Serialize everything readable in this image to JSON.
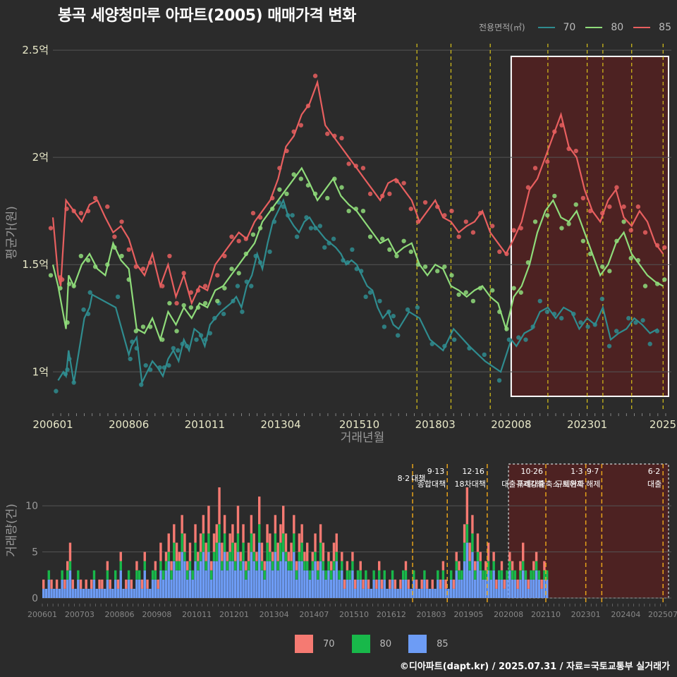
{
  "title": "봉곡 세양청마루 아파트(2005) 매매가격 변화",
  "credit": "©디아파트(dapt.kr) / 2025.07.31 / 자료=국토교통부 실거래가",
  "legend_top": {
    "title": "전용면적(㎡)",
    "items": [
      "70",
      "80",
      "85"
    ]
  },
  "legend_bottom": {
    "items": [
      "70",
      "80",
      "85"
    ]
  },
  "colors": {
    "s70": "#2f8c8f",
    "s80": "#8fdc7a",
    "s85": "#e85f5f",
    "b70": "#f57a72",
    "b80": "#18b84a",
    "b85": "#6d9cf5",
    "event": "#d8c21a",
    "event2": "#e6a21a",
    "highlight": "#5a2020"
  },
  "chart_data": [
    {
      "type": "line",
      "title": "봉곡 세양청마루 아파트(2005) 매매가격 변화",
      "xlabel": "거래년월",
      "ylabel": "평균가(원)",
      "ylim": [
        "0.82억",
        "2.53억"
      ],
      "y_ticks": [
        "1억",
        "1.5억",
        "2억",
        "2.5억"
      ],
      "x_ticks": [
        "200601",
        "200806",
        "201011",
        "201304",
        "201510",
        "201803",
        "202008",
        "202301",
        "2025"
      ],
      "grid": true,
      "legend_position": "top-right",
      "series": [
        {
          "name": "70",
          "x": [
            "200603",
            "200605",
            "200606",
            "200607",
            "200609",
            "200701",
            "200703",
            "200704",
            "200801",
            "200806",
            "200807",
            "200809",
            "200811",
            "200901",
            "200903",
            "200905",
            "200907",
            "200909",
            "200911",
            "201001",
            "201003",
            "201005",
            "201007",
            "201009",
            "201011",
            "201101",
            "201103",
            "201105",
            "201107",
            "201109",
            "201111",
            "201201",
            "201203",
            "201205",
            "201207",
            "201209",
            "201211",
            "201301",
            "201303",
            "201305",
            "201307",
            "201309",
            "201311",
            "201401",
            "201403",
            "201405",
            "201407",
            "201409",
            "201411",
            "201501",
            "201503",
            "201505",
            "201507",
            "201509",
            "201511",
            "201601",
            "201603",
            "201605",
            "201607",
            "201609",
            "201611",
            "201701",
            "201705",
            "201709",
            "201801",
            "201806",
            "201810",
            "201904",
            "201910",
            "202004",
            "202008",
            "202010",
            "202101",
            "202104",
            "202107",
            "202110",
            "202201",
            "202204",
            "202207",
            "202210",
            "202301",
            "202304",
            "202307",
            "202310",
            "202401",
            "202404",
            "202407",
            "202410",
            "202501",
            "202504"
          ],
          "values": [
            0.96,
            1.0,
            0.98,
            1.1,
            0.95,
            1.25,
            1.3,
            1.36,
            1.3,
            1.08,
            1.12,
            1.16,
            0.95,
            1.0,
            1.05,
            1.02,
            0.98,
            1.06,
            1.1,
            1.05,
            1.15,
            1.1,
            1.2,
            1.18,
            1.12,
            1.22,
            1.25,
            1.28,
            1.3,
            1.32,
            1.35,
            1.3,
            1.4,
            1.45,
            1.55,
            1.48,
            1.6,
            1.7,
            1.75,
            1.8,
            1.72,
            1.68,
            1.65,
            1.7,
            1.72,
            1.68,
            1.65,
            1.62,
            1.6,
            1.58,
            1.55,
            1.5,
            1.52,
            1.5,
            1.45,
            1.4,
            1.38,
            1.3,
            1.25,
            1.28,
            1.22,
            1.2,
            1.28,
            1.25,
            1.15,
            1.1,
            1.2,
            1.12,
            1.05,
            1.0,
            1.15,
            1.12,
            1.18,
            1.2,
            1.28,
            1.3,
            1.25,
            1.3,
            1.28,
            1.2,
            1.25,
            1.22,
            1.3,
            1.15,
            1.18,
            1.2,
            1.25,
            1.22,
            1.18,
            1.2
          ]
        },
        {
          "name": "80",
          "x": [
            "200601",
            "200603",
            "200606",
            "200607",
            "200609",
            "200612",
            "200703",
            "200706",
            "200709",
            "200712",
            "200803",
            "200806",
            "200809",
            "200812",
            "200903",
            "200906",
            "200909",
            "200912",
            "201003",
            "201006",
            "201009",
            "201012",
            "201103",
            "201106",
            "201109",
            "201112",
            "201203",
            "201206",
            "201209",
            "201212",
            "201303",
            "201306",
            "201309",
            "201312",
            "201403",
            "201406",
            "201409",
            "201412",
            "201503",
            "201506",
            "201509",
            "201512",
            "201603",
            "201606",
            "201609",
            "201612",
            "201703",
            "201706",
            "201709",
            "201712",
            "201803",
            "201806",
            "201809",
            "201812",
            "201903",
            "201906",
            "201909",
            "201912",
            "202003",
            "202006",
            "202009",
            "202012",
            "202103",
            "202106",
            "202109",
            "202112",
            "202203",
            "202206",
            "202209",
            "202212",
            "202303",
            "202306",
            "202309",
            "202312",
            "202403",
            "202406",
            "202409",
            "202412",
            "202503",
            "202506"
          ],
          "values": [
            1.5,
            1.4,
            1.2,
            1.45,
            1.4,
            1.5,
            1.55,
            1.48,
            1.45,
            1.6,
            1.52,
            1.48,
            1.2,
            1.18,
            1.25,
            1.15,
            1.28,
            1.22,
            1.3,
            1.25,
            1.32,
            1.3,
            1.38,
            1.4,
            1.45,
            1.5,
            1.55,
            1.6,
            1.7,
            1.75,
            1.8,
            1.85,
            1.9,
            1.95,
            1.88,
            1.8,
            1.85,
            1.9,
            1.82,
            1.78,
            1.75,
            1.7,
            1.65,
            1.6,
            1.62,
            1.55,
            1.58,
            1.6,
            1.5,
            1.45,
            1.5,
            1.48,
            1.4,
            1.38,
            1.35,
            1.38,
            1.4,
            1.35,
            1.32,
            1.2,
            1.35,
            1.4,
            1.5,
            1.65,
            1.75,
            1.8,
            1.72,
            1.7,
            1.75,
            1.65,
            1.55,
            1.45,
            1.5,
            1.6,
            1.65,
            1.55,
            1.5,
            1.45,
            1.42,
            1.4
          ]
        },
        {
          "name": "85",
          "x": [
            "200601",
            "200603",
            "200604",
            "200606",
            "200609",
            "200612",
            "200703",
            "200706",
            "200709",
            "200712",
            "200803",
            "200806",
            "200809",
            "200812",
            "200903",
            "200906",
            "200909",
            "200912",
            "201003",
            "201006",
            "201009",
            "201012",
            "201103",
            "201106",
            "201109",
            "201112",
            "201203",
            "201206",
            "201209",
            "201212",
            "201303",
            "201306",
            "201309",
            "201312",
            "201403",
            "201406",
            "201409",
            "201412",
            "201503",
            "201506",
            "201509",
            "201512",
            "201603",
            "201606",
            "201609",
            "201612",
            "201703",
            "201706",
            "201709",
            "201712",
            "201803",
            "201806",
            "201809",
            "201812",
            "201903",
            "201906",
            "201909",
            "201912",
            "202003",
            "202006",
            "202009",
            "202012",
            "202103",
            "202106",
            "202109",
            "202112",
            "202203",
            "202206",
            "202209",
            "202212",
            "202303",
            "202306",
            "202309",
            "202312",
            "202403",
            "202406",
            "202409",
            "202412",
            "202503",
            "202506"
          ],
          "values": [
            1.72,
            1.45,
            1.4,
            1.8,
            1.75,
            1.7,
            1.78,
            1.8,
            1.72,
            1.65,
            1.68,
            1.62,
            1.5,
            1.45,
            1.55,
            1.4,
            1.5,
            1.35,
            1.45,
            1.32,
            1.4,
            1.38,
            1.5,
            1.55,
            1.6,
            1.65,
            1.62,
            1.7,
            1.75,
            1.8,
            1.9,
            2.05,
            2.1,
            2.2,
            2.25,
            2.35,
            2.15,
            2.1,
            2.05,
            2.0,
            1.95,
            1.9,
            1.85,
            1.8,
            1.88,
            1.9,
            1.85,
            1.8,
            1.7,
            1.75,
            1.8,
            1.72,
            1.7,
            1.65,
            1.68,
            1.7,
            1.75,
            1.65,
            1.6,
            1.55,
            1.62,
            1.7,
            1.85,
            1.9,
            2.0,
            2.1,
            2.2,
            2.05,
            2.0,
            1.85,
            1.75,
            1.7,
            1.8,
            1.85,
            1.72,
            1.68,
            1.75,
            1.7,
            1.6,
            1.55
          ]
        }
      ],
      "highlight_range": [
        "202008",
        "202507"
      ],
      "event_lines": [
        "201708",
        "201809",
        "201912",
        "202110",
        "202301",
        "202307",
        "202406",
        "202506"
      ]
    },
    {
      "type": "bar",
      "stacked": true,
      "ylabel": "거래량(건)",
      "ylim": [
        0,
        13
      ],
      "y_ticks": [
        "0",
        "5",
        "10"
      ],
      "x_ticks": [
        "200601",
        "200703",
        "200806",
        "200908",
        "201011",
        "201201",
        "201304",
        "201407",
        "201510",
        "201612",
        "201803",
        "201905",
        "202008",
        "202110",
        "202301",
        "202404",
        "202507"
      ],
      "legend_position": "bottom",
      "events": [
        {
          "x": "201708",
          "date": "8·2",
          "label": "대책"
        },
        {
          "x": "201809",
          "date": "9·13",
          "label": "종합대책"
        },
        {
          "x": "201912",
          "date": "12·16",
          "label": "18차대책"
        },
        {
          "x": "202110",
          "date": "10·26",
          "label": "대출규제강화"
        },
        {
          "x": "202301",
          "date": "1·3",
          "label": "규제완화"
        },
        {
          "x": "202307",
          "date": "9·7",
          "label": "특례대출축소 토허제 해제"
        },
        {
          "x": "202506",
          "date": "6·2",
          "label": "대출"
        }
      ],
      "highlight_range": [
        "202008",
        "202507"
      ],
      "series": [
        {
          "name": "70",
          "note": "monthly counts (approx.)"
        },
        {
          "name": "80"
        },
        {
          "name": "85"
        }
      ],
      "totals_approx": [
        2,
        1,
        3,
        2,
        1,
        2,
        1,
        3,
        2,
        4,
        6,
        2,
        1,
        3,
        2,
        1,
        2,
        1,
        2,
        3,
        1,
        2,
        2,
        1,
        4,
        2,
        1,
        3,
        2,
        5,
        1,
        2,
        3,
        2,
        1,
        4,
        3,
        2,
        5,
        2,
        1,
        3,
        4,
        2,
        6,
        3,
        5,
        7,
        4,
        8,
        6,
        5,
        9,
        7,
        4,
        6,
        3,
        8,
        5,
        7,
        9,
        6,
        10,
        4,
        7,
        8,
        12,
        6,
        9,
        5,
        7,
        8,
        6,
        10,
        5,
        8,
        4,
        6,
        9,
        7,
        5,
        11,
        6,
        4,
        8,
        7,
        5,
        9,
        6,
        8,
        10,
        7,
        5,
        6,
        9,
        4,
        7,
        8,
        5,
        6,
        3,
        5,
        7,
        4,
        8,
        6,
        3,
        5,
        4,
        6,
        7,
        3,
        5,
        2,
        4,
        3,
        5,
        2,
        3,
        4,
        2,
        3,
        2,
        1,
        3,
        2,
        4,
        2,
        3,
        1,
        2,
        3,
        2,
        1,
        2,
        3,
        4,
        2,
        1,
        3,
        2,
        1,
        2,
        3,
        2,
        1,
        2,
        1,
        3,
        2,
        4,
        2,
        1,
        3,
        2,
        5,
        4,
        3,
        8,
        12,
        6,
        9,
        4,
        7,
        5,
        3,
        4,
        6,
        3,
        5,
        2,
        3,
        4,
        2,
        3,
        5,
        4,
        3,
        2,
        4,
        6,
        3,
        2,
        3,
        4,
        5,
        3,
        2,
        4,
        3
      ]
    }
  ]
}
